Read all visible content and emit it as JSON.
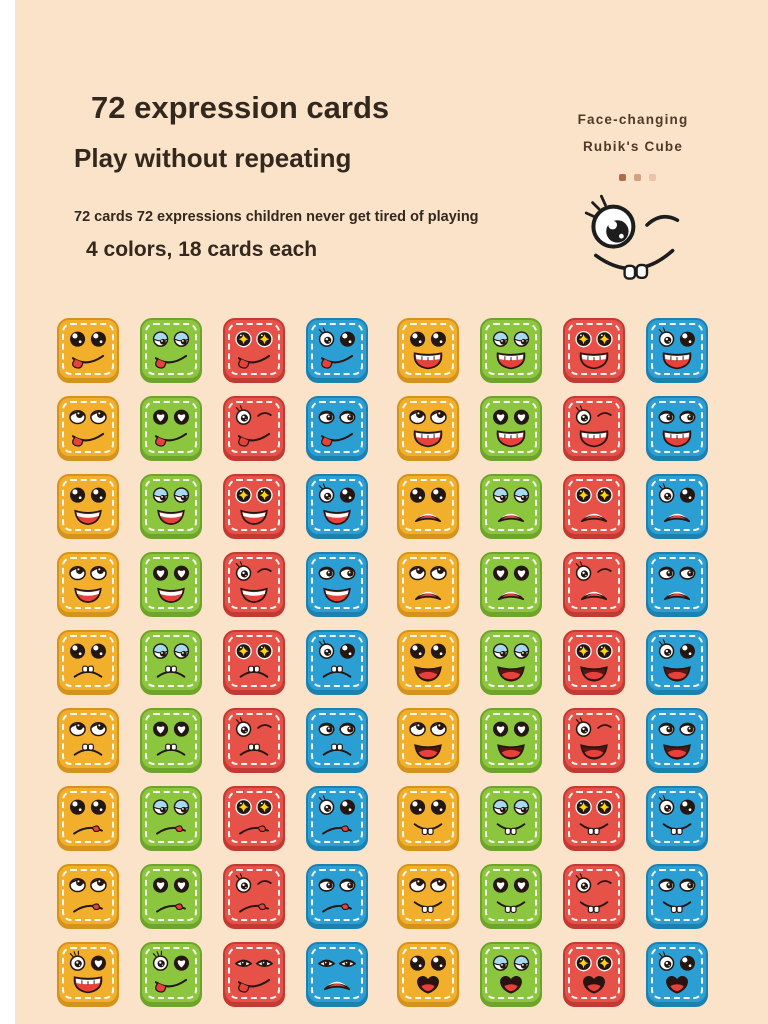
{
  "page": {
    "bg_color": "#fbe3c9",
    "text_color": "#33281d"
  },
  "header": {
    "title": "72 expression cards",
    "subtitle": "Play without repeating",
    "tagline": "72 cards 72 expressions children never get tired of playing",
    "colors_line": "4 colors, 18 cards each"
  },
  "badge": {
    "line1": "Face-changing",
    "line2": "Rubik's Cube",
    "dots_count": 3,
    "dot_color": "#b06c46"
  },
  "card_colors": {
    "yellow": {
      "fill": "#f2af2b",
      "border": "#d3931c"
    },
    "green": {
      "fill": "#8cc63f",
      "border": "#6fa42c"
    },
    "red": {
      "fill": "#e65148",
      "border": "#c23a33"
    },
    "blue": {
      "fill": "#2b9fd4",
      "border": "#1d81b0"
    }
  },
  "grid": {
    "rows": [
      {
        "cards": [
          {
            "color": "yellow",
            "eyes": "round-black",
            "mouth": "tongue-smile"
          },
          {
            "color": "green",
            "eyes": "side-glance",
            "mouth": "tongue-smile"
          },
          {
            "color": "red",
            "eyes": "star-sparkle",
            "mouth": "tongue-smile"
          },
          {
            "color": "blue",
            "eyes": "sparkle-pair",
            "mouth": "tongue-smile"
          },
          {
            "color": "yellow",
            "eyes": "round-black",
            "mouth": "laugh-teeth"
          },
          {
            "color": "green",
            "eyes": "side-glance",
            "mouth": "laugh-teeth"
          },
          {
            "color": "red",
            "eyes": "star-sparkle",
            "mouth": "laugh-teeth"
          },
          {
            "color": "blue",
            "eyes": "sparkle-pair",
            "mouth": "laugh-teeth"
          }
        ]
      },
      {
        "cards": [
          {
            "color": "yellow",
            "eyes": "up-glance",
            "mouth": "tongue-smile"
          },
          {
            "color": "green",
            "eyes": "heart",
            "mouth": "tongue-smile"
          },
          {
            "color": "red",
            "eyes": "wink",
            "mouth": "tongue-smile"
          },
          {
            "color": "blue",
            "eyes": "side-pair",
            "mouth": "tongue-smile"
          },
          {
            "color": "yellow",
            "eyes": "up-glance",
            "mouth": "laugh-teeth"
          },
          {
            "color": "green",
            "eyes": "heart",
            "mouth": "laugh-teeth"
          },
          {
            "color": "red",
            "eyes": "wink",
            "mouth": "laugh-teeth"
          },
          {
            "color": "blue",
            "eyes": "side-pair",
            "mouth": "laugh-teeth"
          }
        ]
      },
      {
        "cards": [
          {
            "color": "yellow",
            "eyes": "round-black",
            "mouth": "open-smile"
          },
          {
            "color": "green",
            "eyes": "side-glance",
            "mouth": "open-smile"
          },
          {
            "color": "red",
            "eyes": "star-sparkle",
            "mouth": "open-smile"
          },
          {
            "color": "blue",
            "eyes": "sparkle-pair",
            "mouth": "open-smile"
          },
          {
            "color": "yellow",
            "eyes": "round-black",
            "mouth": "frown-open"
          },
          {
            "color": "green",
            "eyes": "side-glance",
            "mouth": "frown-open"
          },
          {
            "color": "red",
            "eyes": "star-sparkle",
            "mouth": "frown-open"
          },
          {
            "color": "blue",
            "eyes": "sparkle-pair",
            "mouth": "frown-open"
          }
        ]
      },
      {
        "cards": [
          {
            "color": "yellow",
            "eyes": "up-glance",
            "mouth": "open-smile"
          },
          {
            "color": "green",
            "eyes": "heart",
            "mouth": "open-smile"
          },
          {
            "color": "red",
            "eyes": "wink",
            "mouth": "open-smile"
          },
          {
            "color": "blue",
            "eyes": "side-pair",
            "mouth": "open-smile"
          },
          {
            "color": "yellow",
            "eyes": "up-glance",
            "mouth": "frown-open"
          },
          {
            "color": "green",
            "eyes": "heart",
            "mouth": "frown-open"
          },
          {
            "color": "red",
            "eyes": "wink",
            "mouth": "frown-open"
          },
          {
            "color": "blue",
            "eyes": "side-pair",
            "mouth": "frown-open"
          }
        ]
      },
      {
        "cards": [
          {
            "color": "yellow",
            "eyes": "round-black",
            "mouth": "frown-teeth"
          },
          {
            "color": "green",
            "eyes": "side-glance",
            "mouth": "frown-teeth"
          },
          {
            "color": "red",
            "eyes": "star-sparkle",
            "mouth": "frown-teeth"
          },
          {
            "color": "blue",
            "eyes": "sparkle-pair",
            "mouth": "frown-teeth"
          },
          {
            "color": "yellow",
            "eyes": "round-black",
            "mouth": "open-tongue"
          },
          {
            "color": "green",
            "eyes": "side-glance",
            "mouth": "open-tongue"
          },
          {
            "color": "red",
            "eyes": "star-sparkle",
            "mouth": "open-tongue"
          },
          {
            "color": "blue",
            "eyes": "sparkle-pair",
            "mouth": "open-tongue"
          }
        ]
      },
      {
        "cards": [
          {
            "color": "yellow",
            "eyes": "up-glance",
            "mouth": "frown-teeth"
          },
          {
            "color": "green",
            "eyes": "heart",
            "mouth": "frown-teeth"
          },
          {
            "color": "red",
            "eyes": "wink",
            "mouth": "frown-teeth"
          },
          {
            "color": "blue",
            "eyes": "side-pair",
            "mouth": "frown-teeth"
          },
          {
            "color": "yellow",
            "eyes": "up-glance",
            "mouth": "open-tongue"
          },
          {
            "color": "green",
            "eyes": "heart",
            "mouth": "open-tongue"
          },
          {
            "color": "red",
            "eyes": "wink",
            "mouth": "open-tongue"
          },
          {
            "color": "blue",
            "eyes": "side-pair",
            "mouth": "open-tongue"
          }
        ]
      },
      {
        "cards": [
          {
            "color": "yellow",
            "eyes": "round-black",
            "mouth": "frown-tongue"
          },
          {
            "color": "green",
            "eyes": "side-glance",
            "mouth": "frown-tongue"
          },
          {
            "color": "red",
            "eyes": "star-sparkle",
            "mouth": "frown-tongue"
          },
          {
            "color": "blue",
            "eyes": "sparkle-pair",
            "mouth": "frown-tongue"
          },
          {
            "color": "yellow",
            "eyes": "round-black",
            "mouth": "buckteeth"
          },
          {
            "color": "green",
            "eyes": "side-glance",
            "mouth": "buckteeth"
          },
          {
            "color": "red",
            "eyes": "star-sparkle",
            "mouth": "buckteeth"
          },
          {
            "color": "blue",
            "eyes": "sparkle-pair",
            "mouth": "buckteeth"
          }
        ]
      },
      {
        "cards": [
          {
            "color": "yellow",
            "eyes": "up-glance",
            "mouth": "frown-tongue"
          },
          {
            "color": "green",
            "eyes": "heart",
            "mouth": "frown-tongue"
          },
          {
            "color": "red",
            "eyes": "wink",
            "mouth": "frown-tongue"
          },
          {
            "color": "blue",
            "eyes": "side-pair",
            "mouth": "frown-tongue"
          },
          {
            "color": "yellow",
            "eyes": "up-glance",
            "mouth": "buckteeth"
          },
          {
            "color": "green",
            "eyes": "heart",
            "mouth": "buckteeth"
          },
          {
            "color": "red",
            "eyes": "wink",
            "mouth": "buckteeth"
          },
          {
            "color": "blue",
            "eyes": "side-pair",
            "mouth": "buckteeth"
          }
        ]
      },
      {
        "cards": [
          {
            "color": "yellow",
            "eyes": "lash-heart",
            "mouth": "laugh-teeth"
          },
          {
            "color": "green",
            "eyes": "lash-heart",
            "mouth": "tongue-smile"
          },
          {
            "color": "red",
            "eyes": "half-lid",
            "mouth": "tongue-smile"
          },
          {
            "color": "blue",
            "eyes": "half-lid",
            "mouth": "frown-open"
          },
          {
            "color": "yellow",
            "eyes": "round-black",
            "mouth": "heart-mouth"
          },
          {
            "color": "green",
            "eyes": "side-glance",
            "mouth": "heart-mouth"
          },
          {
            "color": "red",
            "eyes": "star-sparkle",
            "mouth": "heart-mouth"
          },
          {
            "color": "blue",
            "eyes": "sparkle-pair",
            "mouth": "heart-mouth"
          }
        ]
      }
    ]
  }
}
